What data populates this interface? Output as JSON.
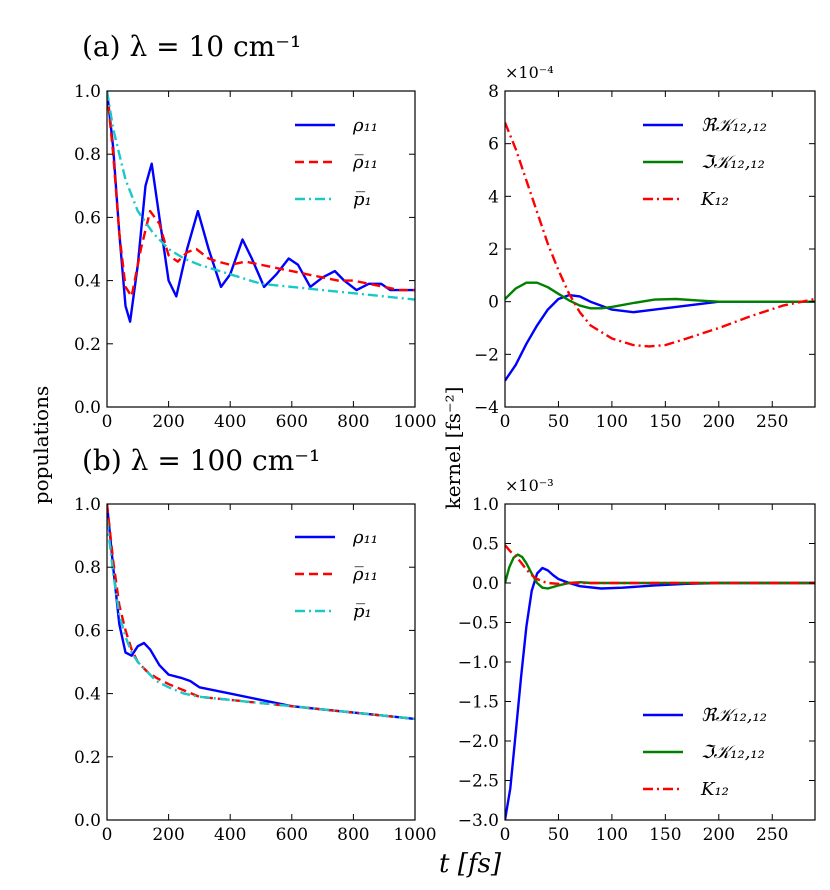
{
  "figure": {
    "ylabel_left": "populations",
    "ylabel_right": "kernel [fs⁻²]",
    "xlabel": "t [fs]"
  },
  "chart_data": [
    {
      "id": "a-left",
      "type": "line",
      "title": "(a) λ = 10 cm⁻¹",
      "xlim": [
        0,
        1000
      ],
      "ylim": [
        0.0,
        1.0
      ],
      "xticks": [
        0,
        200,
        400,
        600,
        800,
        1000
      ],
      "yticks": [
        0.0,
        0.2,
        0.4,
        0.6,
        0.8,
        1.0
      ],
      "xtick_labels": [
        "0",
        "200",
        "400",
        "600",
        "800",
        "1000"
      ],
      "ytick_labels": [
        "0.0",
        "0.2",
        "0.4",
        "0.6",
        "0.8",
        "1.0"
      ],
      "legend_position": "top-right",
      "series": [
        {
          "name": "ρ₁₁",
          "color": "#0000ff",
          "dash": "solid",
          "x": [
            0,
            20,
            40,
            60,
            75,
            100,
            125,
            145,
            170,
            200,
            225,
            260,
            295,
            330,
            370,
            400,
            440,
            470,
            510,
            550,
            590,
            620,
            660,
            700,
            740,
            770,
            810,
            850,
            890,
            920,
            960,
            1000
          ],
          "y": [
            1.0,
            0.82,
            0.55,
            0.32,
            0.27,
            0.45,
            0.7,
            0.77,
            0.6,
            0.4,
            0.35,
            0.5,
            0.62,
            0.5,
            0.38,
            0.42,
            0.53,
            0.47,
            0.38,
            0.42,
            0.47,
            0.45,
            0.38,
            0.41,
            0.43,
            0.4,
            0.37,
            0.39,
            0.39,
            0.37,
            0.37,
            0.37
          ]
        },
        {
          "name": "ρ̅₁₁",
          "color": "#ff0000",
          "dash": "dashed",
          "x": [
            0,
            20,
            40,
            60,
            80,
            110,
            140,
            170,
            200,
            230,
            260,
            290,
            330,
            360,
            400,
            450,
            500,
            550,
            600,
            650,
            700,
            750,
            800,
            850,
            900,
            950,
            1000
          ],
          "y": [
            1.0,
            0.8,
            0.55,
            0.38,
            0.35,
            0.5,
            0.62,
            0.58,
            0.48,
            0.46,
            0.49,
            0.5,
            0.47,
            0.46,
            0.45,
            0.46,
            0.45,
            0.44,
            0.43,
            0.42,
            0.41,
            0.4,
            0.4,
            0.39,
            0.38,
            0.37,
            0.37
          ]
        },
        {
          "name": "p̅₁",
          "color": "#1ac8c8",
          "dash": "dashdot",
          "x": [
            0,
            20,
            40,
            60,
            100,
            150,
            200,
            250,
            300,
            400,
            500,
            600,
            700,
            800,
            900,
            1000
          ],
          "y": [
            1.0,
            0.88,
            0.8,
            0.72,
            0.62,
            0.55,
            0.5,
            0.47,
            0.45,
            0.42,
            0.39,
            0.38,
            0.37,
            0.36,
            0.35,
            0.34
          ]
        }
      ]
    },
    {
      "id": "a-right",
      "type": "line",
      "scale_label": "×10⁻⁴",
      "xlim": [
        0,
        290
      ],
      "ylim": [
        -4,
        8
      ],
      "xticks": [
        0,
        50,
        100,
        150,
        200,
        250
      ],
      "yticks": [
        -4,
        -2,
        0,
        2,
        4,
        6,
        8
      ],
      "xtick_labels": [
        "0",
        "50",
        "100",
        "150",
        "200",
        "250"
      ],
      "ytick_labels": [
        "−4",
        "−2",
        "0",
        "2",
        "4",
        "6",
        "8"
      ],
      "legend_position": "top-right",
      "series": [
        {
          "name": "ℜ𝒦₁₂,₁₂",
          "color": "#0000ff",
          "dash": "solid",
          "x": [
            0,
            10,
            20,
            30,
            40,
            50,
            60,
            70,
            80,
            100,
            120,
            140,
            160,
            180,
            200,
            230,
            260,
            290
          ],
          "y": [
            -3.0,
            -2.4,
            -1.6,
            -0.9,
            -0.3,
            0.1,
            0.25,
            0.2,
            0.0,
            -0.3,
            -0.4,
            -0.3,
            -0.2,
            -0.1,
            0.0,
            0.0,
            0.0,
            0.0
          ]
        },
        {
          "name": "ℑ𝒦₁₂,₁₂",
          "color": "#008000",
          "dash": "solid",
          "x": [
            0,
            10,
            20,
            30,
            40,
            50,
            60,
            70,
            80,
            90,
            100,
            120,
            140,
            160,
            180,
            200,
            240,
            290
          ],
          "y": [
            0.1,
            0.5,
            0.72,
            0.72,
            0.55,
            0.3,
            0.05,
            -0.15,
            -0.25,
            -0.25,
            -0.2,
            -0.05,
            0.08,
            0.1,
            0.05,
            0.0,
            0.0,
            0.0
          ]
        },
        {
          "name": "K₁₂",
          "color": "#ff0000",
          "dash": "dashdot",
          "x": [
            0,
            10,
            20,
            30,
            40,
            50,
            60,
            70,
            80,
            100,
            120,
            135,
            150,
            170,
            200,
            230,
            260,
            290
          ],
          "y": [
            6.8,
            5.8,
            4.6,
            3.4,
            2.2,
            1.2,
            0.3,
            -0.4,
            -0.9,
            -1.4,
            -1.65,
            -1.7,
            -1.65,
            -1.4,
            -1.0,
            -0.55,
            -0.15,
            0.1
          ]
        }
      ]
    },
    {
      "id": "b-left",
      "type": "line",
      "title": "(b) λ = 100 cm⁻¹",
      "xlim": [
        0,
        1000
      ],
      "ylim": [
        0.0,
        1.0
      ],
      "xticks": [
        0,
        200,
        400,
        600,
        800,
        1000
      ],
      "yticks": [
        0.0,
        0.2,
        0.4,
        0.6,
        0.8,
        1.0
      ],
      "xtick_labels": [
        "0",
        "200",
        "400",
        "600",
        "800",
        "1000"
      ],
      "ytick_labels": [
        "0.0",
        "0.2",
        "0.4",
        "0.6",
        "0.8",
        "1.0"
      ],
      "legend_position": "top-right",
      "series": [
        {
          "name": "ρ₁₁",
          "color": "#0000ff",
          "dash": "solid",
          "x": [
            0,
            20,
            40,
            60,
            80,
            100,
            120,
            140,
            170,
            200,
            240,
            270,
            300,
            350,
            400,
            500,
            600,
            700,
            800,
            900,
            1000
          ],
          "y": [
            1.0,
            0.8,
            0.62,
            0.53,
            0.52,
            0.55,
            0.56,
            0.54,
            0.49,
            0.46,
            0.45,
            0.44,
            0.42,
            0.41,
            0.4,
            0.38,
            0.36,
            0.35,
            0.34,
            0.33,
            0.32
          ]
        },
        {
          "name": "ρ̅₁₁",
          "color": "#ff0000",
          "dash": "dashed",
          "x": [
            0,
            20,
            40,
            60,
            80,
            100,
            130,
            160,
            200,
            250,
            300,
            400,
            500,
            600,
            700,
            800,
            900,
            1000
          ],
          "y": [
            1.0,
            0.82,
            0.68,
            0.6,
            0.54,
            0.5,
            0.47,
            0.45,
            0.43,
            0.41,
            0.39,
            0.38,
            0.37,
            0.36,
            0.35,
            0.34,
            0.33,
            0.32
          ]
        },
        {
          "name": "p̅₁",
          "color": "#1ac8c8",
          "dash": "dashdot",
          "x": [
            0,
            20,
            40,
            60,
            80,
            100,
            130,
            160,
            200,
            250,
            300,
            400,
            500,
            600,
            700,
            800,
            900,
            1000
          ],
          "y": [
            0.95,
            0.78,
            0.65,
            0.58,
            0.53,
            0.5,
            0.47,
            0.44,
            0.42,
            0.4,
            0.39,
            0.38,
            0.37,
            0.36,
            0.35,
            0.34,
            0.33,
            0.32
          ]
        }
      ]
    },
    {
      "id": "b-right",
      "type": "line",
      "scale_label": "×10⁻³",
      "xlim": [
        0,
        290
      ],
      "ylim": [
        -3.0,
        1.0
      ],
      "xticks": [
        0,
        50,
        100,
        150,
        200,
        250
      ],
      "yticks": [
        -3.0,
        -2.5,
        -2.0,
        -1.5,
        -1.0,
        -0.5,
        0.0,
        0.5,
        1.0
      ],
      "xtick_labels": [
        "0",
        "50",
        "100",
        "150",
        "200",
        "250"
      ],
      "ytick_labels": [
        "−3.0",
        "−2.5",
        "−2.0",
        "−1.5",
        "−1.0",
        "−0.5",
        "0.0",
        "0.5",
        "1.0"
      ],
      "legend_position": "bottom-right",
      "series": [
        {
          "name": "ℜ𝒦₁₂,₁₂",
          "color": "#0000ff",
          "dash": "solid",
          "x": [
            0,
            5,
            10,
            15,
            20,
            25,
            30,
            35,
            40,
            45,
            50,
            60,
            70,
            90,
            110,
            140,
            170,
            200,
            290
          ],
          "y": [
            -3.0,
            -2.6,
            -1.9,
            -1.2,
            -0.55,
            -0.1,
            0.12,
            0.19,
            0.16,
            0.1,
            0.05,
            0.0,
            -0.04,
            -0.07,
            -0.06,
            -0.03,
            -0.01,
            0.0,
            0.0
          ]
        },
        {
          "name": "ℑ𝒦₁₂,₁₂",
          "color": "#008000",
          "dash": "solid",
          "x": [
            0,
            4,
            8,
            12,
            16,
            20,
            25,
            30,
            35,
            40,
            45,
            50,
            60,
            70,
            80,
            100,
            290
          ],
          "y": [
            0.0,
            0.2,
            0.32,
            0.36,
            0.33,
            0.25,
            0.12,
            0.0,
            -0.06,
            -0.07,
            -0.05,
            -0.03,
            0.0,
            0.01,
            0.0,
            0.0,
            0.0
          ]
        },
        {
          "name": "K₁₂",
          "color": "#ff0000",
          "dash": "dashdot",
          "x": [
            0,
            5,
            10,
            15,
            20,
            25,
            30,
            35,
            40,
            50,
            60,
            80,
            290
          ],
          "y": [
            0.48,
            0.4,
            0.34,
            0.26,
            0.17,
            0.1,
            0.05,
            0.02,
            0.0,
            -0.01,
            0.0,
            0.0,
            0.0
          ]
        }
      ]
    }
  ]
}
